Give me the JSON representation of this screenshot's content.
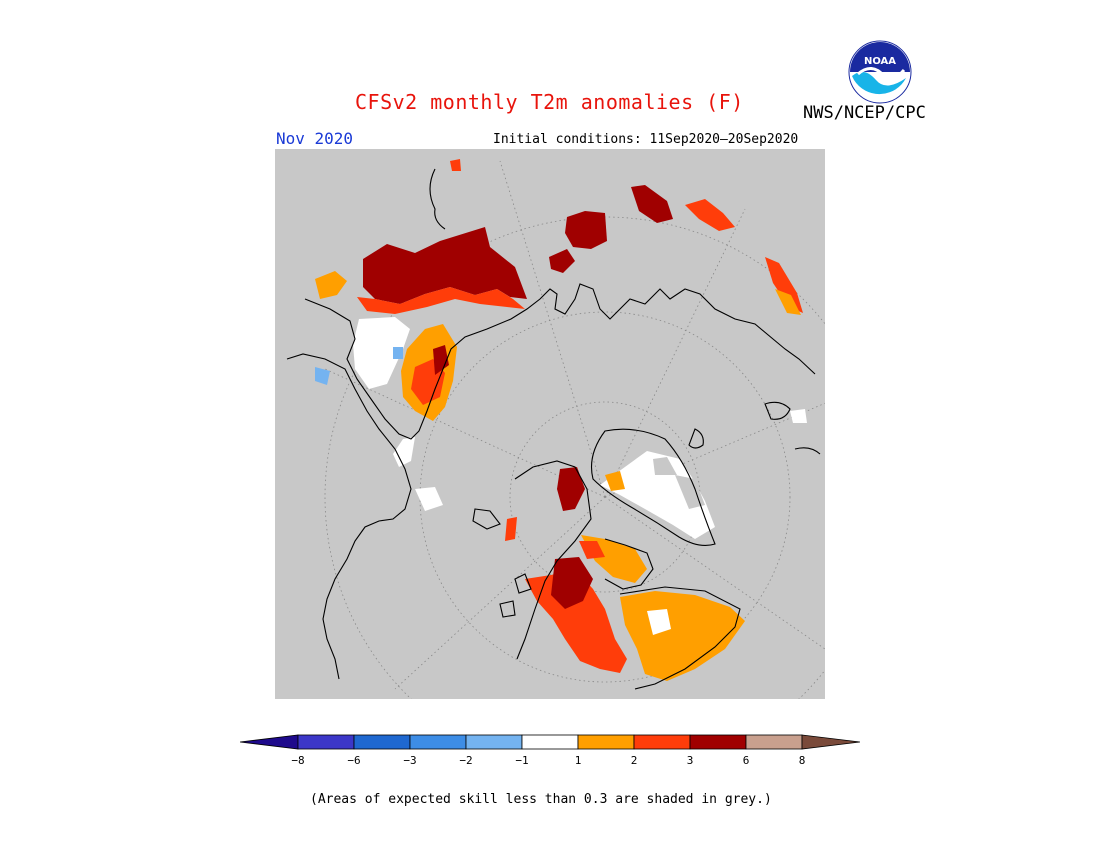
{
  "title": "CFSv2 monthly T2m anomalies (F)",
  "month_label": "Nov 2020",
  "initial_conditions": "Initial conditions: 11Sep2020—20Sep2020",
  "agency": "NWS/NCEP/CPC",
  "logo": {
    "text": "NOAA",
    "icon": "noaa-logo"
  },
  "footnote": "(Areas of expected skill less than 0.3 are shaded in grey.)",
  "colors": {
    "map_background": "#c8c8c8",
    "coastline": "#000000",
    "title": "#e8140c",
    "month": "#1a3ad6"
  },
  "legend": {
    "bins": [
      {
        "color": "#1e0a8c"
      },
      {
        "color": "#3c37c8"
      },
      {
        "color": "#1f68d0"
      },
      {
        "color": "#3d8de6"
      },
      {
        "color": "#74b3f0"
      },
      {
        "color": "#ffffff"
      },
      {
        "color": "#ff9f00"
      },
      {
        "color": "#ff3d0a"
      },
      {
        "color": "#a00000"
      },
      {
        "color": "#c9a08e"
      },
      {
        "color": "#7a4a3a"
      }
    ],
    "tick_labels": [
      "−8",
      "−6",
      "−3",
      "−2",
      "−1",
      "1",
      "2",
      "3",
      "6",
      "8"
    ]
  }
}
